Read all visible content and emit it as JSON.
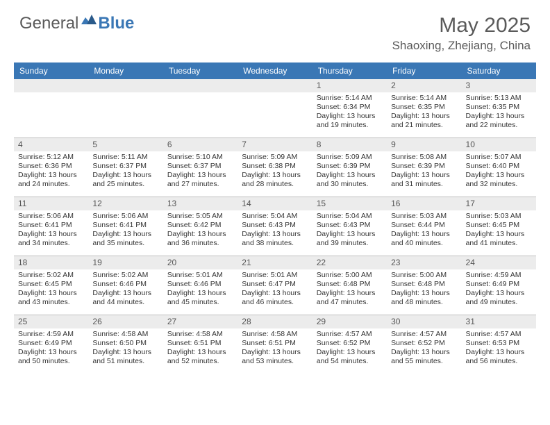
{
  "logo": {
    "text_general": "General",
    "text_blue": "Blue",
    "brand_color": "#3a77b5",
    "gray_color": "#5a5a5a"
  },
  "title": "May 2025",
  "location": "Shaoxing, Zhejiang, China",
  "colors": {
    "header_bg": "#3a77b5",
    "header_text": "#ffffff",
    "daynum_bg": "#ececec",
    "daynum_text": "#555555",
    "border": "#bfbfbf",
    "body_text": "#333333"
  },
  "typography": {
    "title_fontsize": 30,
    "location_fontsize": 17,
    "weekday_fontsize": 12,
    "daynum_fontsize": 12,
    "body_fontsize": 10.5
  },
  "weekdays": [
    "Sunday",
    "Monday",
    "Tuesday",
    "Wednesday",
    "Thursday",
    "Friday",
    "Saturday"
  ],
  "weeks": [
    [
      null,
      null,
      null,
      null,
      {
        "n": "1",
        "sunrise": "Sunrise: 5:14 AM",
        "sunset": "Sunset: 6:34 PM",
        "daylight": "Daylight: 13 hours and 19 minutes."
      },
      {
        "n": "2",
        "sunrise": "Sunrise: 5:14 AM",
        "sunset": "Sunset: 6:35 PM",
        "daylight": "Daylight: 13 hours and 21 minutes."
      },
      {
        "n": "3",
        "sunrise": "Sunrise: 5:13 AM",
        "sunset": "Sunset: 6:35 PM",
        "daylight": "Daylight: 13 hours and 22 minutes."
      }
    ],
    [
      {
        "n": "4",
        "sunrise": "Sunrise: 5:12 AM",
        "sunset": "Sunset: 6:36 PM",
        "daylight": "Daylight: 13 hours and 24 minutes."
      },
      {
        "n": "5",
        "sunrise": "Sunrise: 5:11 AM",
        "sunset": "Sunset: 6:37 PM",
        "daylight": "Daylight: 13 hours and 25 minutes."
      },
      {
        "n": "6",
        "sunrise": "Sunrise: 5:10 AM",
        "sunset": "Sunset: 6:37 PM",
        "daylight": "Daylight: 13 hours and 27 minutes."
      },
      {
        "n": "7",
        "sunrise": "Sunrise: 5:09 AM",
        "sunset": "Sunset: 6:38 PM",
        "daylight": "Daylight: 13 hours and 28 minutes."
      },
      {
        "n": "8",
        "sunrise": "Sunrise: 5:09 AM",
        "sunset": "Sunset: 6:39 PM",
        "daylight": "Daylight: 13 hours and 30 minutes."
      },
      {
        "n": "9",
        "sunrise": "Sunrise: 5:08 AM",
        "sunset": "Sunset: 6:39 PM",
        "daylight": "Daylight: 13 hours and 31 minutes."
      },
      {
        "n": "10",
        "sunrise": "Sunrise: 5:07 AM",
        "sunset": "Sunset: 6:40 PM",
        "daylight": "Daylight: 13 hours and 32 minutes."
      }
    ],
    [
      {
        "n": "11",
        "sunrise": "Sunrise: 5:06 AM",
        "sunset": "Sunset: 6:41 PM",
        "daylight": "Daylight: 13 hours and 34 minutes."
      },
      {
        "n": "12",
        "sunrise": "Sunrise: 5:06 AM",
        "sunset": "Sunset: 6:41 PM",
        "daylight": "Daylight: 13 hours and 35 minutes."
      },
      {
        "n": "13",
        "sunrise": "Sunrise: 5:05 AM",
        "sunset": "Sunset: 6:42 PM",
        "daylight": "Daylight: 13 hours and 36 minutes."
      },
      {
        "n": "14",
        "sunrise": "Sunrise: 5:04 AM",
        "sunset": "Sunset: 6:43 PM",
        "daylight": "Daylight: 13 hours and 38 minutes."
      },
      {
        "n": "15",
        "sunrise": "Sunrise: 5:04 AM",
        "sunset": "Sunset: 6:43 PM",
        "daylight": "Daylight: 13 hours and 39 minutes."
      },
      {
        "n": "16",
        "sunrise": "Sunrise: 5:03 AM",
        "sunset": "Sunset: 6:44 PM",
        "daylight": "Daylight: 13 hours and 40 minutes."
      },
      {
        "n": "17",
        "sunrise": "Sunrise: 5:03 AM",
        "sunset": "Sunset: 6:45 PM",
        "daylight": "Daylight: 13 hours and 41 minutes."
      }
    ],
    [
      {
        "n": "18",
        "sunrise": "Sunrise: 5:02 AM",
        "sunset": "Sunset: 6:45 PM",
        "daylight": "Daylight: 13 hours and 43 minutes."
      },
      {
        "n": "19",
        "sunrise": "Sunrise: 5:02 AM",
        "sunset": "Sunset: 6:46 PM",
        "daylight": "Daylight: 13 hours and 44 minutes."
      },
      {
        "n": "20",
        "sunrise": "Sunrise: 5:01 AM",
        "sunset": "Sunset: 6:46 PM",
        "daylight": "Daylight: 13 hours and 45 minutes."
      },
      {
        "n": "21",
        "sunrise": "Sunrise: 5:01 AM",
        "sunset": "Sunset: 6:47 PM",
        "daylight": "Daylight: 13 hours and 46 minutes."
      },
      {
        "n": "22",
        "sunrise": "Sunrise: 5:00 AM",
        "sunset": "Sunset: 6:48 PM",
        "daylight": "Daylight: 13 hours and 47 minutes."
      },
      {
        "n": "23",
        "sunrise": "Sunrise: 5:00 AM",
        "sunset": "Sunset: 6:48 PM",
        "daylight": "Daylight: 13 hours and 48 minutes."
      },
      {
        "n": "24",
        "sunrise": "Sunrise: 4:59 AM",
        "sunset": "Sunset: 6:49 PM",
        "daylight": "Daylight: 13 hours and 49 minutes."
      }
    ],
    [
      {
        "n": "25",
        "sunrise": "Sunrise: 4:59 AM",
        "sunset": "Sunset: 6:49 PM",
        "daylight": "Daylight: 13 hours and 50 minutes."
      },
      {
        "n": "26",
        "sunrise": "Sunrise: 4:58 AM",
        "sunset": "Sunset: 6:50 PM",
        "daylight": "Daylight: 13 hours and 51 minutes."
      },
      {
        "n": "27",
        "sunrise": "Sunrise: 4:58 AM",
        "sunset": "Sunset: 6:51 PM",
        "daylight": "Daylight: 13 hours and 52 minutes."
      },
      {
        "n": "28",
        "sunrise": "Sunrise: 4:58 AM",
        "sunset": "Sunset: 6:51 PM",
        "daylight": "Daylight: 13 hours and 53 minutes."
      },
      {
        "n": "29",
        "sunrise": "Sunrise: 4:57 AM",
        "sunset": "Sunset: 6:52 PM",
        "daylight": "Daylight: 13 hours and 54 minutes."
      },
      {
        "n": "30",
        "sunrise": "Sunrise: 4:57 AM",
        "sunset": "Sunset: 6:52 PM",
        "daylight": "Daylight: 13 hours and 55 minutes."
      },
      {
        "n": "31",
        "sunrise": "Sunrise: 4:57 AM",
        "sunset": "Sunset: 6:53 PM",
        "daylight": "Daylight: 13 hours and 56 minutes."
      }
    ]
  ]
}
